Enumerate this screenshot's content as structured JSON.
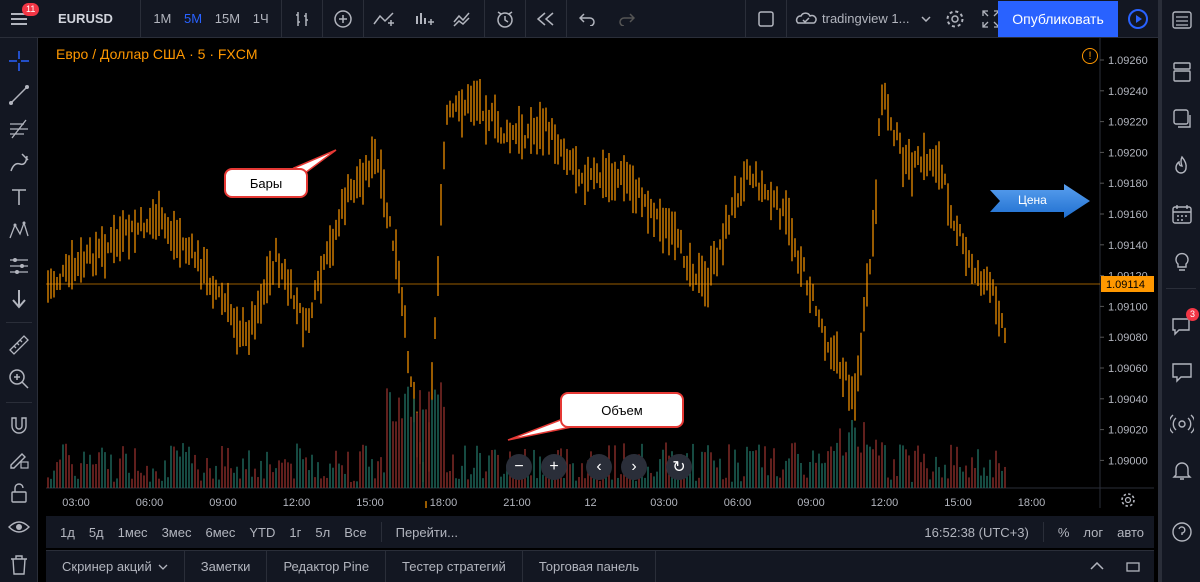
{
  "topbar": {
    "menu_badge": "11",
    "symbol": "EURUSD",
    "intervals": [
      "1М",
      "5М",
      "15М",
      "1Ч"
    ],
    "active_interval": "5М",
    "layout_name": "tradingview 1...",
    "publish_label": "Опубликовать"
  },
  "chart": {
    "legend": "Евро / Доллар США · 5 · FXCM",
    "current_price": "1.09114",
    "price_ticks": [
      "1.09260",
      "1.09240",
      "1.09220",
      "1.09200",
      "1.09180",
      "1.09160",
      "1.09140",
      "1.09120",
      "1.09100",
      "1.09080",
      "1.09060",
      "1.09040",
      "1.09020",
      "1.09000"
    ],
    "time_ticks": [
      "03:00",
      "06:00",
      "09:00",
      "12:00",
      "15:00",
      "18:00",
      "21:00",
      "12",
      "03:00",
      "06:00",
      "09:00",
      "12:00",
      "15:00",
      "18:00"
    ],
    "callout_bars": "Бары",
    "callout_volume": "Объем",
    "callout_price": "Цена",
    "colors": {
      "bars": "#ff9800",
      "volume_up": "#26a69a",
      "volume_down": "#ef5350",
      "price_line": "#ff9800"
    }
  },
  "bottom_timeframes": [
    "1д",
    "5д",
    "1мес",
    "3мес",
    "6мес",
    "YTD",
    "1г",
    "5л",
    "Все"
  ],
  "goto_label": "Перейти...",
  "clock": "16:52:38 (UTC+3)",
  "scale_options": [
    "%",
    "лог",
    "авто"
  ],
  "bottom_tabs": [
    "Скринер акций",
    "Заметки",
    "Редактор Pine",
    "Тестер стратегий",
    "Торговая панель"
  ],
  "right_badge": "3"
}
